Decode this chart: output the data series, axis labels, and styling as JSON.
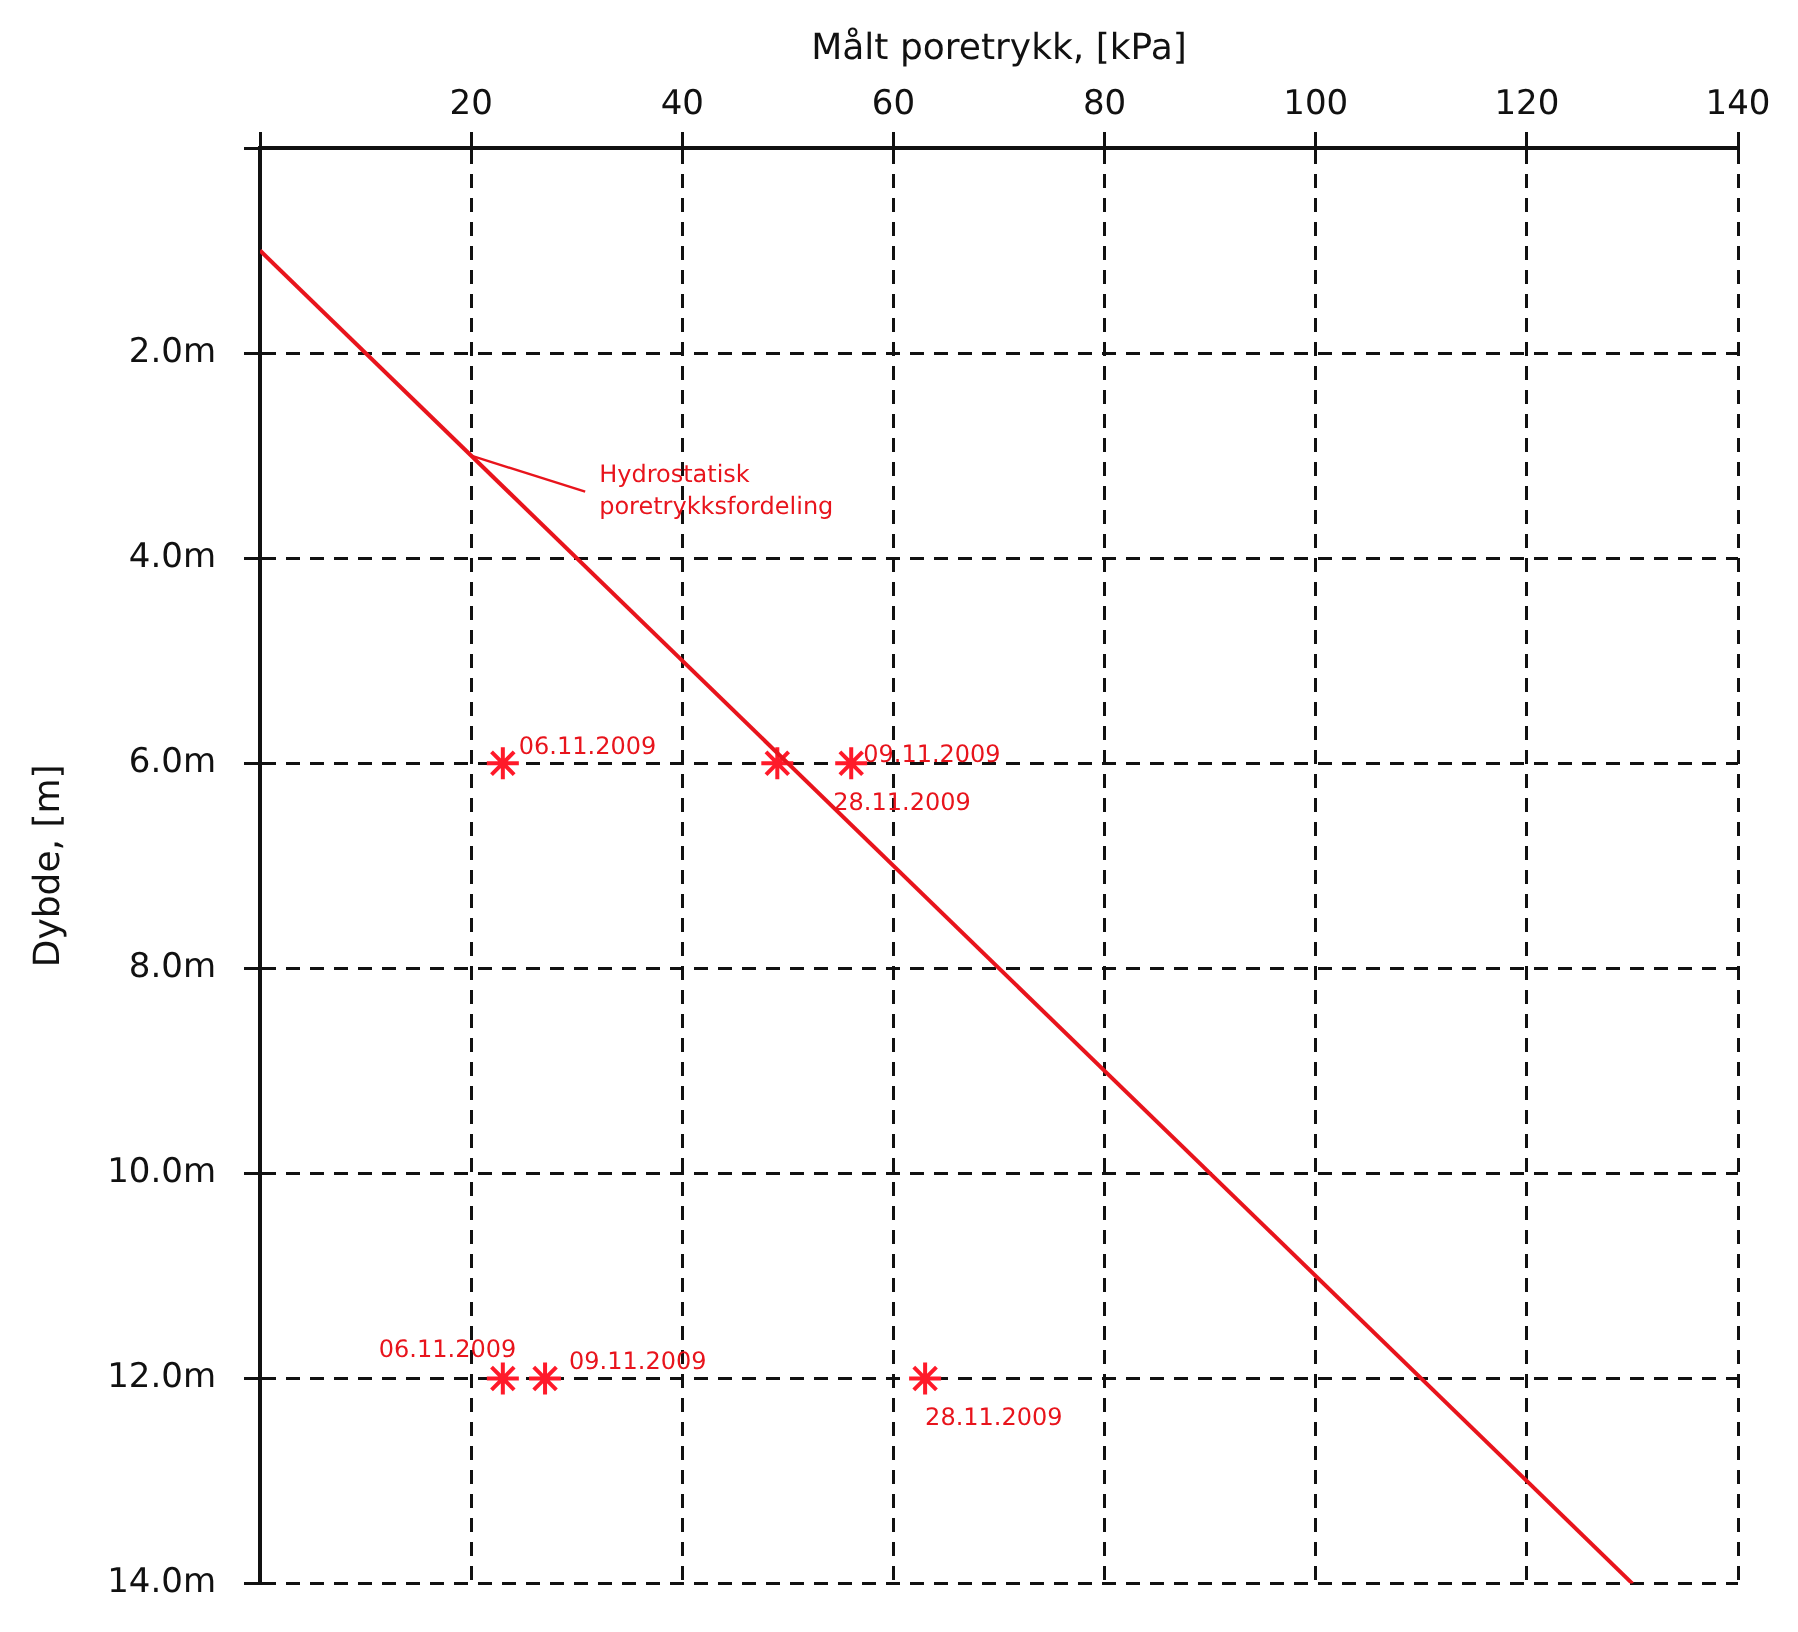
{
  "chart_data": {
    "type": "scatter",
    "xlabel": "Målt poretrykk, [kPa]",
    "ylabel": "Dybde, [m]",
    "xlim": [
      0,
      140
    ],
    "xticks": [
      {
        "value": 0,
        "label": null
      },
      20,
      40,
      60,
      80,
      100,
      120,
      140
    ],
    "ylim": [
      14,
      0
    ],
    "yticks": [
      {
        "value": 0,
        "label": null
      },
      {
        "value": 2,
        "label": "2.0m"
      },
      {
        "value": 4,
        "label": "4.0m"
      },
      {
        "value": 6,
        "label": "6.0m"
      },
      {
        "value": 8,
        "label": "8.0m"
      },
      {
        "value": 10,
        "label": "10.0m"
      },
      {
        "value": 12,
        "label": "12.0m"
      },
      {
        "value": 14,
        "label": "14.0m"
      }
    ],
    "grid": true,
    "legend": false,
    "series": [
      {
        "type": "line",
        "color": "#e8141c",
        "x": [
          0,
          130
        ],
        "values": [
          1,
          14
        ]
      },
      {
        "type": "scatter",
        "marker": "cross",
        "color": "#ff1a2a",
        "x": [
          23,
          49,
          56,
          23,
          27,
          63
        ],
        "values": [
          6,
          6,
          6,
          12,
          12,
          12
        ]
      }
    ],
    "annotations": [
      {
        "text": "Hydrostatisk poretrykksfordeling",
        "x": 20,
        "y": 3
      },
      {
        "text": "06.11.2009",
        "x": 23,
        "y": 6
      },
      {
        "text": "28.11.2009",
        "x": 49,
        "y": 6
      },
      {
        "text": "09.11.2009",
        "x": 56,
        "y": 6
      },
      {
        "text": "06.11.2009",
        "x": 23,
        "y": 12
      },
      {
        "text": "09.11.2009",
        "x": 27,
        "y": 12
      },
      {
        "text": "28.11.2009",
        "x": 63,
        "y": 12
      }
    ]
  }
}
